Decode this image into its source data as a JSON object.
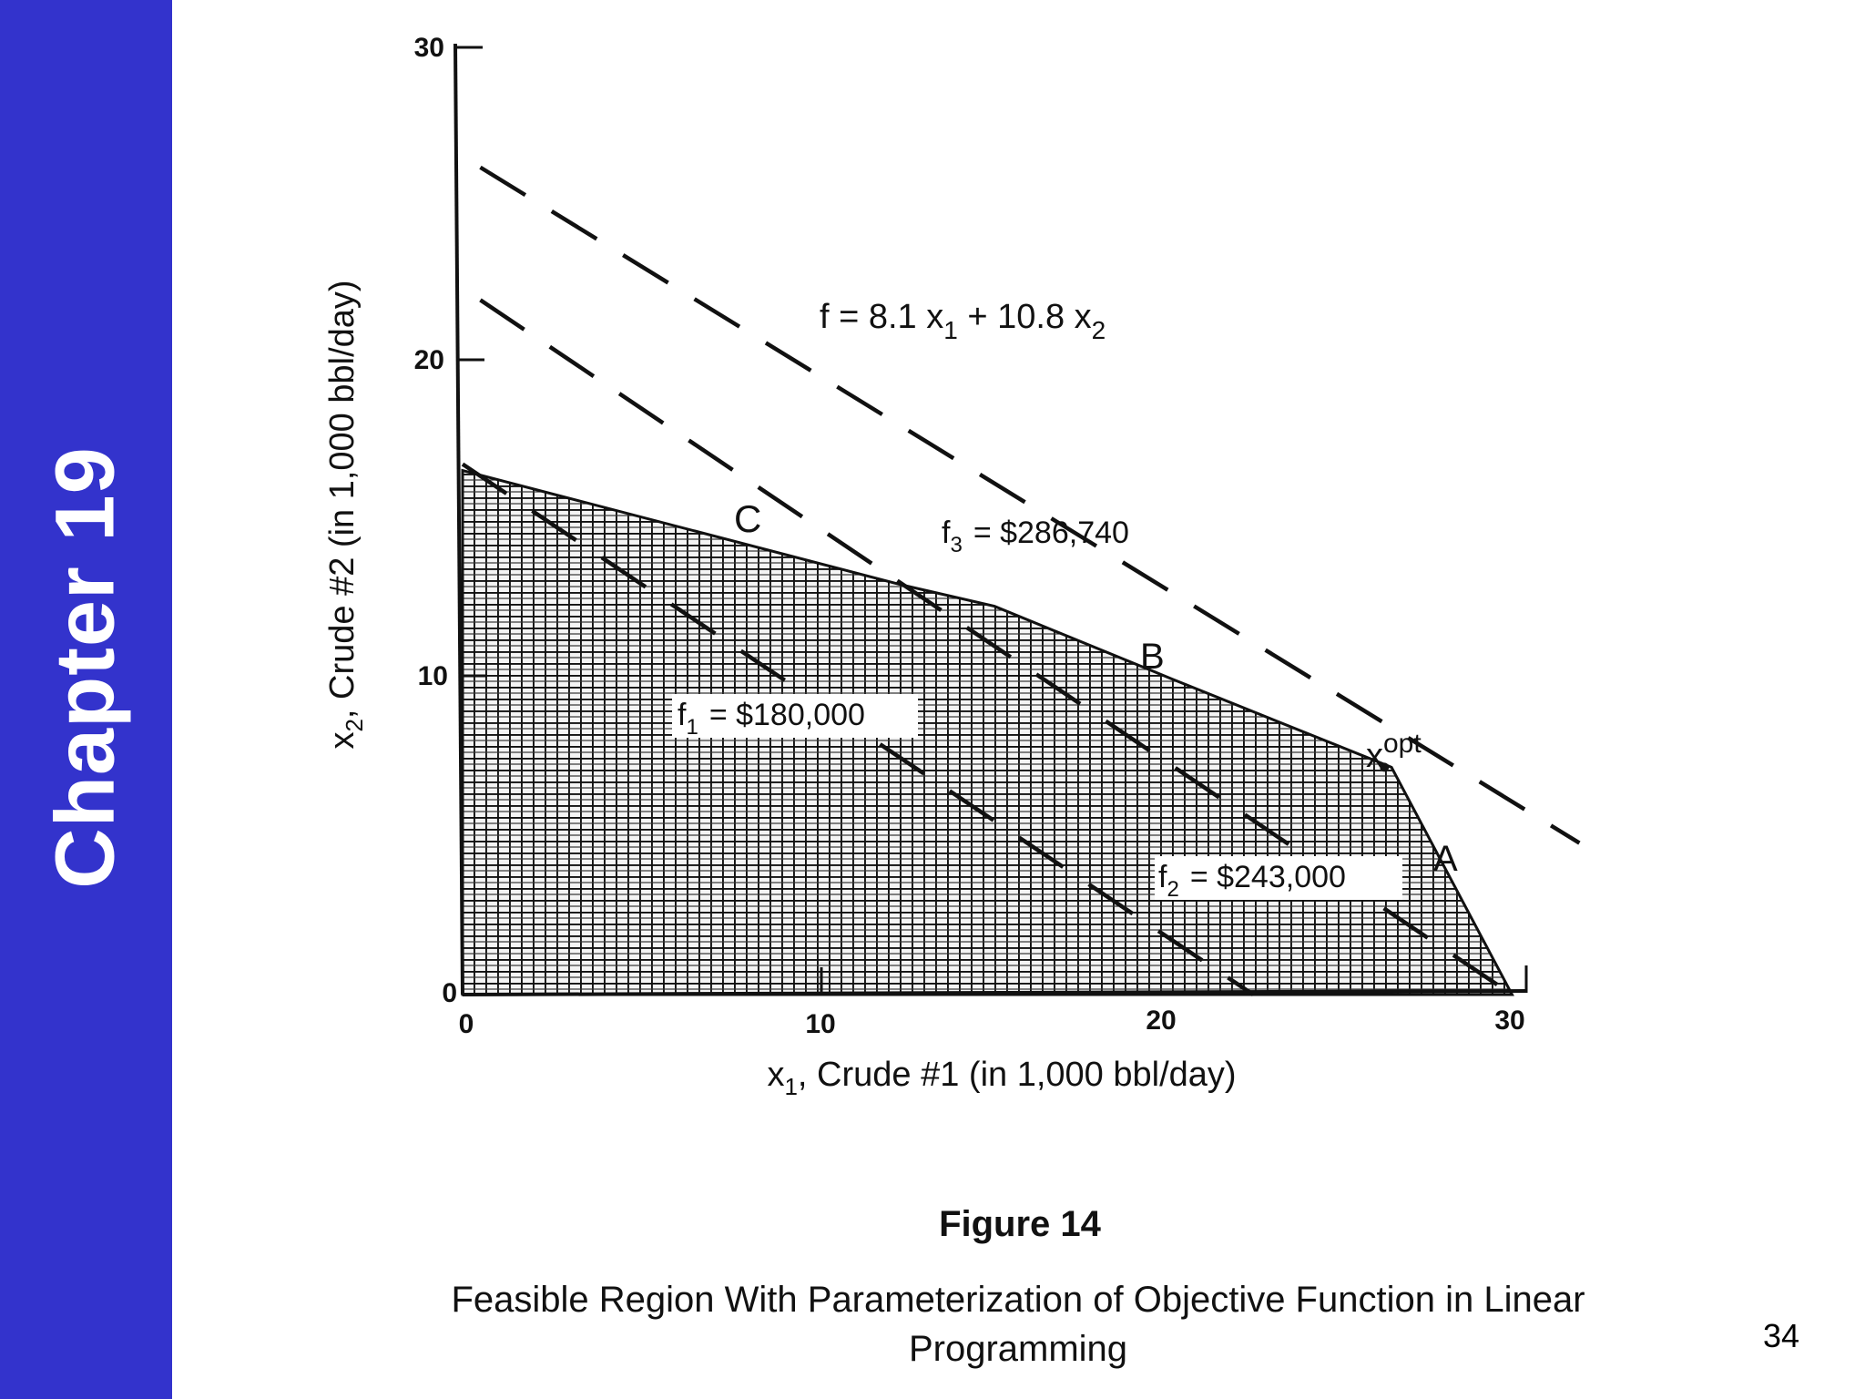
{
  "slide": {
    "sidebar_title": "Chapter 19",
    "sidebar_color": "#3333cc",
    "page_number": "34",
    "figure_number": "Figure 14",
    "caption": "Feasible Region With Parameterization of Objective Function in Linear Programming"
  },
  "chart_data": {
    "type": "line",
    "title": "",
    "xlabel_prefix": "x",
    "xlabel_sub": "1",
    "xlabel_text": ", Crude #1 (in 1,000 bbl/day)",
    "ylabel_prefix": "x",
    "ylabel_sub": "2",
    "ylabel_text": ", Crude #2 (in 1,000 bbl/day)",
    "xlim": [
      0,
      30
    ],
    "ylim": [
      0,
      30
    ],
    "xticks": [
      "0",
      "10",
      "20",
      "30"
    ],
    "yticks": [
      "0",
      "10",
      "20",
      "30"
    ],
    "grid": false,
    "objective": {
      "lhs": "f = 8.1 x",
      "s1": "1",
      "mid": " + 10.8 x",
      "s2": "2"
    },
    "feasible_region": {
      "fill": "crosshatch",
      "vertices": [
        [
          0,
          16.6
        ],
        [
          12.3,
          13.0
        ],
        [
          15.0,
          12.3
        ],
        [
          20.0,
          10.0
        ],
        [
          26.2,
          7.2
        ],
        [
          29.6,
          0
        ],
        [
          0,
          0
        ]
      ]
    },
    "iso_profit_lines": [
      {
        "label_f": "f",
        "sub": "1",
        "value": "= $180,000",
        "from": [
          0,
          16.8
        ],
        "to": [
          22.3,
          0
        ]
      },
      {
        "label_f": "f",
        "sub": "2",
        "value": "= $243,000",
        "from": [
          0.5,
          22.0
        ],
        "to": [
          29.6,
          0
        ]
      },
      {
        "label_f": "f",
        "sub": "3",
        "value": "= $286,740",
        "from": [
          0.5,
          26.2
        ],
        "to": [
          31.5,
          4.8
        ]
      }
    ],
    "points": [
      {
        "label": "C",
        "x": 8.5,
        "y": 15.0
      },
      {
        "label": "B",
        "x": 21.0,
        "y": 10.8
      },
      {
        "label": "x",
        "sup": "opt",
        "x": 26.0,
        "y": 7.2
      },
      {
        "label": "A",
        "x": 29.3,
        "y": 4.2
      }
    ]
  }
}
